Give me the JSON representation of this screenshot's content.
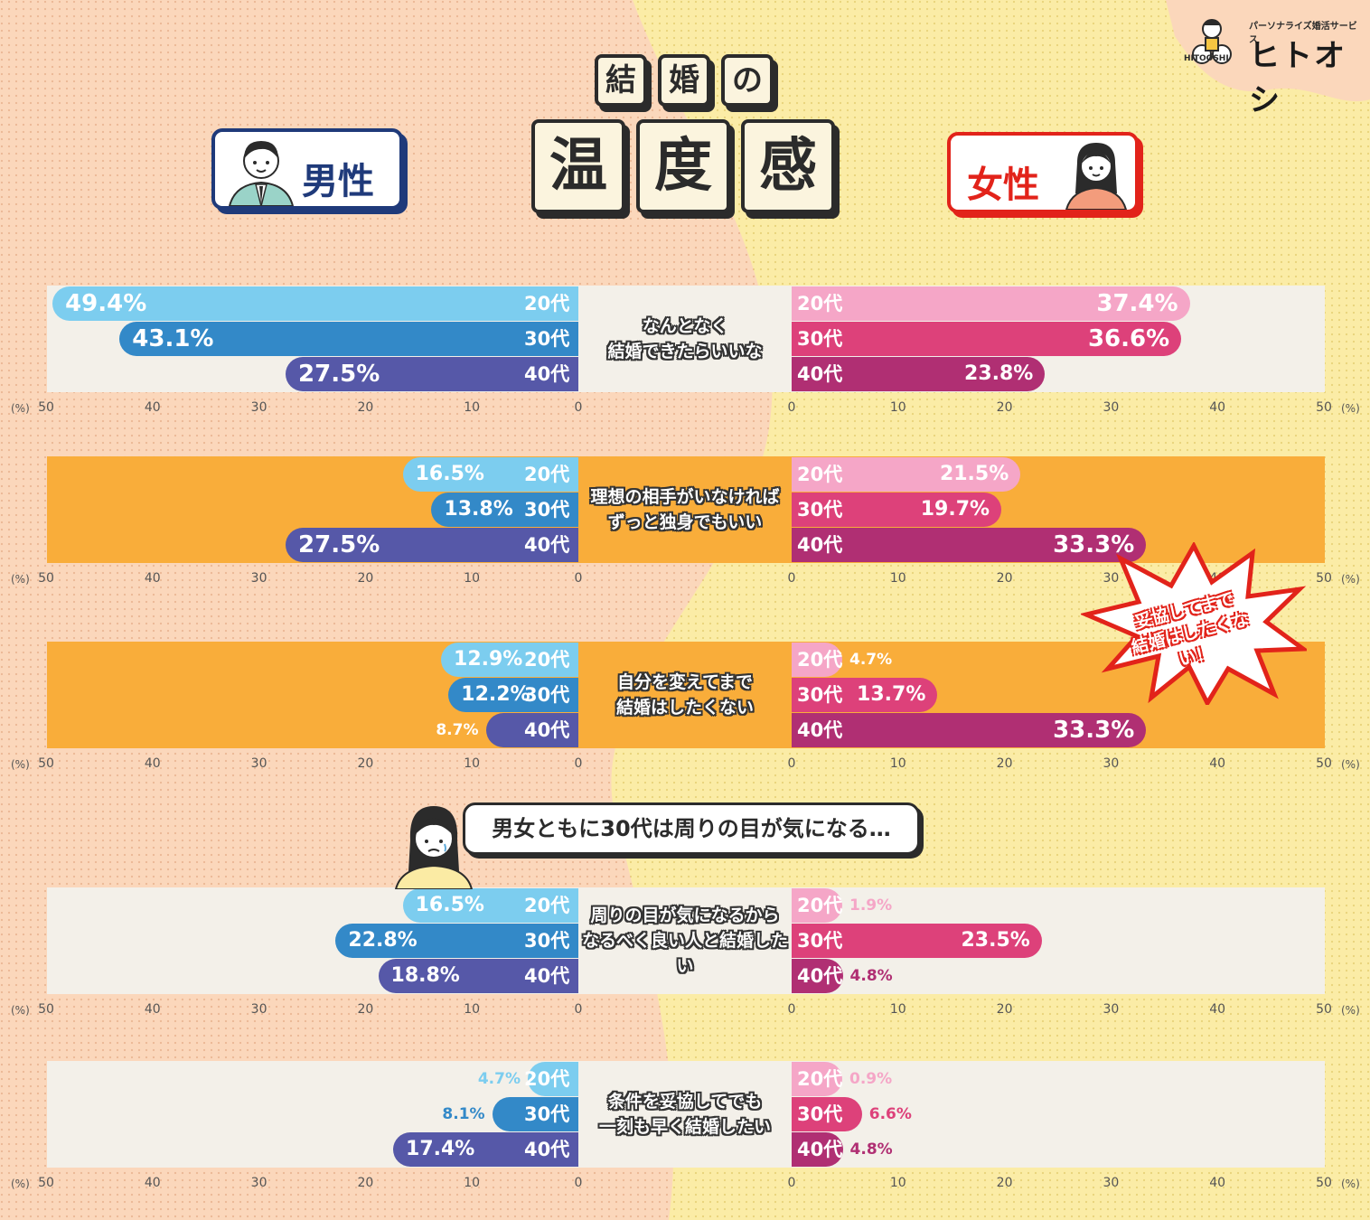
{
  "title": {
    "row1": [
      "結",
      "婚",
      "の"
    ],
    "row2": [
      "温",
      "度",
      "感"
    ]
  },
  "labels": {
    "male": "男性",
    "female": "女性"
  },
  "logo": {
    "tagline": "パーソナライズ婚活サービス",
    "name": "ヒトオシ",
    "mascot_text": "HITOOSHI"
  },
  "callouts": {
    "speech": "男女ともに30代は周りの目が気になる…",
    "burst_line1": "妥協してまで",
    "burst_line2": "結婚はしたくない！"
  },
  "colors": {
    "male_20": "#7ccdef",
    "male_30": "#3389c8",
    "male_40": "#5658a8",
    "female_20": "#f5a6c7",
    "female_30": "#dd417a",
    "female_40": "#b02f73",
    "highlight_panel": "#f9ad3a",
    "plain_panel": "#f3f0e9",
    "male_bg": "#fbd6b8",
    "female_bg": "#fbeba4"
  },
  "chart_data": [
    {
      "type": "bar",
      "question_line1": "なんとなく",
      "question_line2": "結婚できたらいいな",
      "highlight": false,
      "categories": [
        "20代",
        "30代",
        "40代"
      ],
      "series": [
        {
          "name": "男性",
          "values": [
            49.4,
            43.1,
            27.5
          ],
          "labels": [
            "49.4%",
            "43.1%",
            "27.5%"
          ]
        },
        {
          "name": "女性",
          "values": [
            37.4,
            36.6,
            23.8
          ],
          "labels": [
            "37.4%",
            "36.6%",
            "23.8%"
          ]
        }
      ],
      "ticks": [
        "50",
        "40",
        "30",
        "20",
        "10",
        "0"
      ],
      "unit": "(%)",
      "xlim": [
        0,
        50
      ]
    },
    {
      "type": "bar",
      "question_line1": "理想の相手がいなければ",
      "question_line2": "ずっと独身でもいい",
      "highlight": true,
      "categories": [
        "20代",
        "30代",
        "40代"
      ],
      "series": [
        {
          "name": "男性",
          "values": [
            16.5,
            13.8,
            27.5
          ],
          "labels": [
            "16.5%",
            "13.8%",
            "27.5%"
          ]
        },
        {
          "name": "女性",
          "values": [
            21.5,
            19.7,
            33.3
          ],
          "labels": [
            "21.5%",
            "19.7%",
            "33.3%"
          ]
        }
      ],
      "ticks": [
        "50",
        "40",
        "30",
        "20",
        "10",
        "0"
      ],
      "unit": "(%)",
      "xlim": [
        0,
        50
      ]
    },
    {
      "type": "bar",
      "question_line1": "自分を変えてまで",
      "question_line2": "結婚はしたくない",
      "highlight": true,
      "categories": [
        "20代",
        "30代",
        "40代"
      ],
      "series": [
        {
          "name": "男性",
          "values": [
            12.9,
            12.2,
            8.7
          ],
          "labels": [
            "12.9%",
            "12.2%",
            "8.7%"
          ]
        },
        {
          "name": "女性",
          "values": [
            4.7,
            13.7,
            33.3
          ],
          "labels": [
            "4.7%",
            "13.7%",
            "33.3%"
          ]
        }
      ],
      "ticks": [
        "50",
        "40",
        "30",
        "20",
        "10",
        "0"
      ],
      "unit": "(%)",
      "xlim": [
        0,
        50
      ]
    },
    {
      "type": "bar",
      "question_line1": "周りの目が気になるから",
      "question_line2": "なるべく良い人と結婚したい",
      "highlight": false,
      "categories": [
        "20代",
        "30代",
        "40代"
      ],
      "series": [
        {
          "name": "男性",
          "values": [
            16.5,
            22.8,
            18.8
          ],
          "labels": [
            "16.5%",
            "22.8%",
            "18.8%"
          ]
        },
        {
          "name": "女性",
          "values": [
            1.9,
            23.5,
            4.8
          ],
          "labels": [
            "1.9%",
            "23.5%",
            "4.8%"
          ]
        }
      ],
      "ticks": [
        "50",
        "40",
        "30",
        "20",
        "10",
        "0"
      ],
      "unit": "(%)",
      "xlim": [
        0,
        50
      ]
    },
    {
      "type": "bar",
      "question_line1": "条件を妥協してでも",
      "question_line2": "一刻も早く結婚したい",
      "highlight": false,
      "categories": [
        "20代",
        "30代",
        "40代"
      ],
      "series": [
        {
          "name": "男性",
          "values": [
            4.7,
            8.1,
            17.4
          ],
          "labels": [
            "4.7%",
            "8.1%",
            "17.4%"
          ]
        },
        {
          "name": "女性",
          "values": [
            0.9,
            6.6,
            4.8
          ],
          "labels": [
            "0.9%",
            "6.6%",
            "4.8%"
          ]
        }
      ],
      "ticks": [
        "50",
        "40",
        "30",
        "20",
        "10",
        "0"
      ],
      "unit": "(%)",
      "xlim": [
        0,
        50
      ]
    }
  ]
}
